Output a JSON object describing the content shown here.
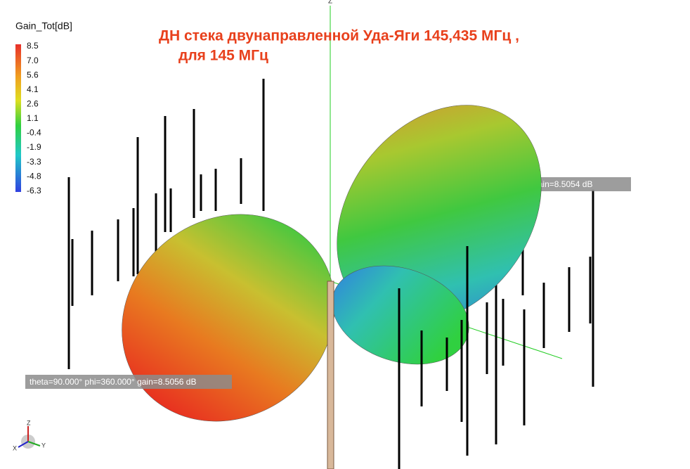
{
  "legend": {
    "title": "Gain_Tot[dB]",
    "ticks": [
      "8.5",
      "7.0",
      "5.6",
      "4.1",
      "2.6",
      "1.1",
      "-0.4",
      "-1.9",
      "-3.3",
      "-4.8",
      "-6.3"
    ]
  },
  "title": {
    "line1": "ДН стека двунаправленной Уда-Яги 145,435 МГц ,",
    "line2": "для 145 МГц"
  },
  "annotations": [
    "theta=90.000° phi=360.000° gain=8.5056 dB",
    "theta=90.000° phi=180.000° gain=8.5054 dB"
  ],
  "axes": {
    "z_top": "Z",
    "triad_x": "X",
    "triad_y": "Y",
    "triad_z": "Z"
  }
}
